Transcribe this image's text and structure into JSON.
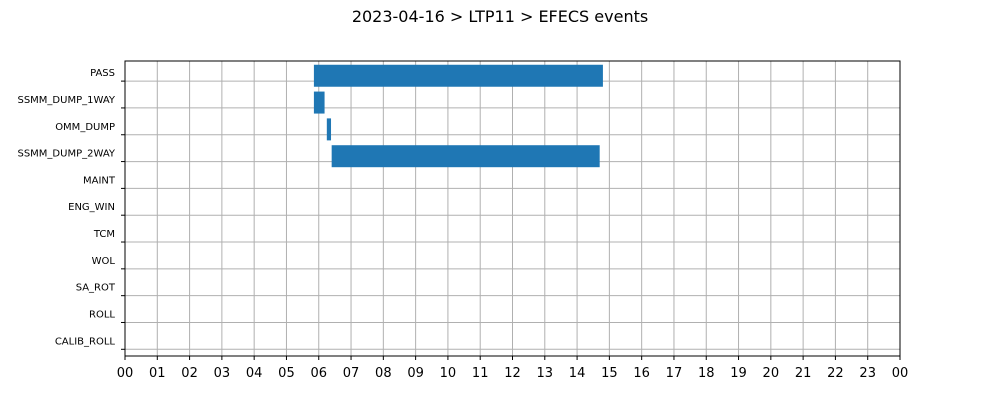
{
  "chart_data": {
    "type": "bar",
    "orientation": "horizontal",
    "title": "2023-04-16 > LTP11 > EFECS events",
    "xlabel": "",
    "ylabel": "",
    "x_unit": "hour",
    "xlim": [
      0,
      24
    ],
    "x_tick_labels": [
      "00",
      "01",
      "02",
      "03",
      "04",
      "05",
      "06",
      "07",
      "08",
      "09",
      "10",
      "11",
      "12",
      "13",
      "14",
      "15",
      "16",
      "17",
      "18",
      "19",
      "20",
      "21",
      "22",
      "23",
      "00"
    ],
    "categories": [
      "PASS",
      "SSMM_DUMP_1WAY",
      "OMM_DUMP",
      "SSMM_DUMP_2WAY",
      "MAINT",
      "ENG_WIN",
      "TCM",
      "WOL",
      "SA_ROT",
      "ROLL",
      "CALIB_ROLL"
    ],
    "intervals": [
      {
        "category": "PASS",
        "start": 5.85,
        "end": 14.8
      },
      {
        "category": "SSMM_DUMP_1WAY",
        "start": 5.85,
        "end": 6.18
      },
      {
        "category": "OMM_DUMP",
        "start": 6.25,
        "end": 6.38
      },
      {
        "category": "SSMM_DUMP_2WAY",
        "start": 6.4,
        "end": 14.7
      }
    ],
    "grid": true,
    "legend": "none",
    "bar_color": "#1f77b4"
  }
}
